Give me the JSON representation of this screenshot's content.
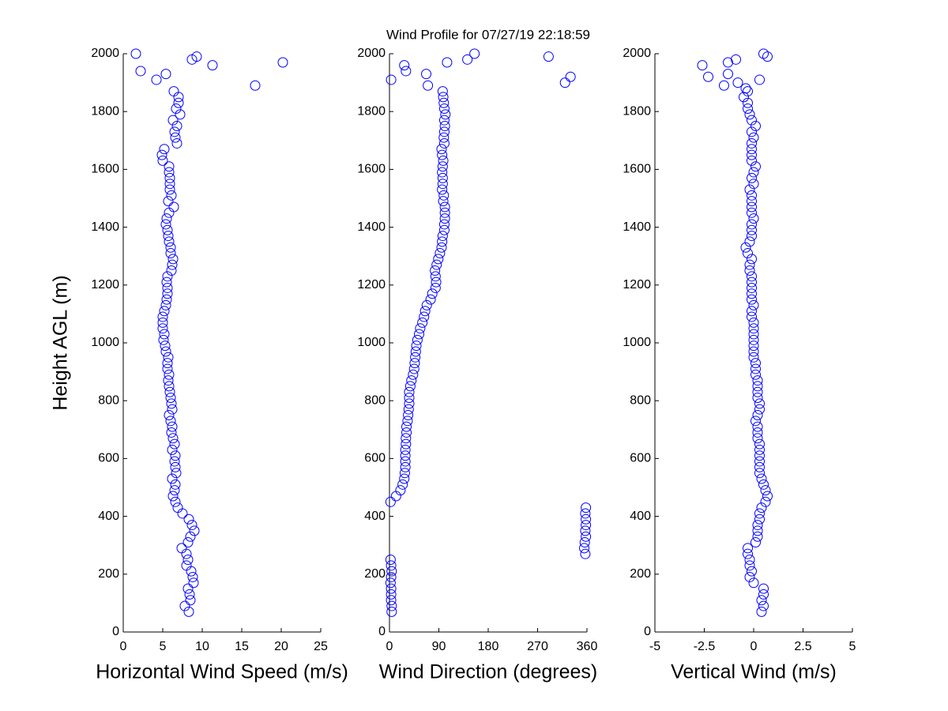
{
  "chart_data": [
    {
      "type": "scatter",
      "title": "Wind Profile for  07/27/19 22:18:59",
      "x_label": "Horizontal Wind Speed (m/s)",
      "y_label": "Height AGL (m)",
      "color": "#0000ff",
      "x": [
        8.3,
        7.8,
        8.5,
        8.4,
        8.2,
        8.9,
        8.8,
        8.6,
        8.0,
        8.2,
        8.0,
        7.4,
        8.2,
        8.5,
        9.0,
        8.7,
        8.3,
        7.5,
        6.9,
        6.6,
        6.3,
        6.5,
        6.6,
        6.2,
        6.7,
        6.6,
        6.5,
        6.6,
        6.2,
        6.5,
        6.3,
        6.1,
        6.2,
        6.0,
        5.8,
        6.2,
        6.1,
        6.0,
        5.9,
        5.8,
        5.7,
        5.8,
        5.6,
        5.6,
        5.7,
        5.4,
        5.3,
        5.1,
        5.2,
        5.0,
        5.0,
        5.0,
        5.2,
        5.4,
        5.5,
        5.6,
        5.6,
        5.5,
        5.6,
        6.1,
        6.2,
        6.3,
        6.0,
        6.0,
        5.8,
        5.7,
        5.6,
        5.4,
        5.5,
        5.8,
        6.4,
        5.7,
        6.1,
        5.9,
        5.9,
        5.9,
        5.8,
        5.8,
        5.0,
        4.9,
        5.2,
        6.8,
        6.6,
        6.5,
        6.8,
        6.3,
        7.2,
        6.7,
        7.0,
        7.0,
        6.4,
        1.6,
        2.2,
        4.2,
        5.4,
        9.3,
        8.7,
        11.3,
        20.2,
        16.7
      ],
      "y": [
        70,
        90,
        110,
        130,
        150,
        170,
        190,
        210,
        230,
        250,
        270,
        290,
        310,
        330,
        350,
        370,
        390,
        410,
        430,
        450,
        470,
        490,
        510,
        530,
        550,
        570,
        590,
        610,
        630,
        650,
        670,
        690,
        710,
        730,
        750,
        770,
        790,
        810,
        830,
        850,
        870,
        890,
        910,
        930,
        950,
        970,
        990,
        1010,
        1030,
        1050,
        1070,
        1090,
        1110,
        1130,
        1150,
        1170,
        1190,
        1210,
        1230,
        1250,
        1270,
        1290,
        1310,
        1330,
        1350,
        1370,
        1390,
        1410,
        1430,
        1450,
        1470,
        1490,
        1510,
        1530,
        1550,
        1570,
        1590,
        1610,
        1630,
        1650,
        1670,
        1690,
        1710,
        1730,
        1750,
        1770,
        1790,
        1810,
        1830,
        1850,
        1870,
        2000,
        1940,
        1910,
        1930,
        1990,
        1980,
        1960,
        1970,
        1890
      ],
      "xlim": [
        0,
        25
      ],
      "xticks": [
        0,
        5,
        10,
        15,
        20,
        25
      ],
      "ylim": [
        0,
        2000
      ],
      "yticks": [
        0,
        200,
        400,
        600,
        800,
        1000,
        1200,
        1400,
        1600,
        1800,
        2000
      ]
    },
    {
      "type": "scatter",
      "x_label": "Wind Direction (degrees)",
      "color": "#0000ff",
      "x": [
        4,
        4,
        3,
        3,
        3,
        2,
        3,
        4,
        3,
        2,
        357,
        355,
        356,
        358,
        357,
        358,
        358,
        357,
        358,
        2,
        12,
        20,
        24,
        27,
        28,
        29,
        29,
        29,
        29,
        30,
        30,
        31,
        31,
        33,
        34,
        35,
        36,
        36,
        36,
        38,
        40,
        43,
        45,
        46,
        47,
        48,
        49,
        51,
        54,
        56,
        60,
        63,
        65,
        68,
        75,
        78,
        84,
        85,
        84,
        83,
        86,
        89,
        92,
        95,
        96,
        97,
        100,
        100,
        101,
        101,
        101,
        98,
        99,
        96,
        97,
        97,
        96,
        97,
        98,
        96,
        95,
        100,
        99,
        100,
        101,
        100,
        102,
        100,
        99,
        98,
        97,
        3,
        27,
        30,
        67,
        70,
        105,
        142,
        155,
        290,
        320,
        330
      ],
      "y": [
        70,
        90,
        110,
        130,
        150,
        170,
        190,
        210,
        230,
        250,
        270,
        290,
        310,
        330,
        350,
        370,
        390,
        410,
        430,
        450,
        470,
        490,
        510,
        530,
        550,
        570,
        590,
        610,
        630,
        650,
        670,
        690,
        710,
        730,
        750,
        770,
        790,
        810,
        830,
        850,
        870,
        890,
        910,
        930,
        950,
        970,
        990,
        1010,
        1030,
        1050,
        1070,
        1090,
        1110,
        1130,
        1150,
        1170,
        1190,
        1210,
        1230,
        1250,
        1270,
        1290,
        1310,
        1330,
        1350,
        1370,
        1390,
        1410,
        1430,
        1450,
        1470,
        1490,
        1510,
        1530,
        1550,
        1570,
        1590,
        1610,
        1630,
        1650,
        1670,
        1690,
        1710,
        1730,
        1750,
        1770,
        1790,
        1810,
        1830,
        1850,
        1870,
        1910,
        1960,
        1940,
        1930,
        1890,
        1970,
        1980,
        2000,
        1990,
        1900,
        1920
      ],
      "xlim": [
        0,
        360
      ],
      "xticks": [
        0,
        90,
        180,
        270,
        360
      ],
      "ylim": [
        0,
        2000
      ],
      "yticks": [
        0,
        200,
        400,
        600,
        800,
        1000,
        1200,
        1400,
        1600,
        1800,
        2000
      ]
    },
    {
      "type": "scatter",
      "x_label": "Vertical Wind (m/s)",
      "color": "#0000ff",
      "x": [
        0.4,
        0.5,
        0.4,
        0.5,
        0.5,
        0.0,
        -0.2,
        -0.1,
        -0.2,
        -0.2,
        -0.3,
        -0.3,
        0.1,
        0.2,
        0.2,
        0.2,
        0.3,
        0.3,
        0.4,
        0.6,
        0.7,
        0.6,
        0.5,
        0.4,
        0.3,
        0.3,
        0.3,
        0.3,
        0.3,
        0.3,
        0.2,
        0.2,
        0.2,
        0.1,
        0.2,
        0.3,
        0.3,
        0.2,
        0.2,
        0.2,
        0.2,
        0.1,
        0.1,
        0.1,
        0.0,
        0.0,
        0.0,
        0.0,
        0.0,
        0.0,
        0.0,
        -0.1,
        -0.1,
        0.0,
        -0.1,
        -0.1,
        -0.1,
        -0.1,
        -0.1,
        -0.2,
        -0.2,
        -0.1,
        -0.3,
        -0.4,
        -0.2,
        -0.1,
        -0.1,
        -0.1,
        0.0,
        -0.1,
        -0.1,
        -0.1,
        -0.1,
        -0.2,
        0.0,
        -0.1,
        0.0,
        0.1,
        -0.1,
        -0.1,
        -0.1,
        -0.1,
        0.0,
        -0.1,
        0.1,
        -0.1,
        -0.2,
        -0.3,
        -0.3,
        -0.5,
        -0.3,
        -2.6,
        -2.3,
        -1.3,
        -1.3,
        -0.9,
        -0.8,
        -1.5,
        0.5,
        0.7,
        0.3,
        -0.4
      ],
      "y": [
        70,
        90,
        110,
        130,
        150,
        170,
        190,
        210,
        230,
        250,
        270,
        290,
        310,
        330,
        350,
        370,
        390,
        410,
        430,
        450,
        470,
        490,
        510,
        530,
        550,
        570,
        590,
        610,
        630,
        650,
        670,
        690,
        710,
        730,
        750,
        770,
        790,
        810,
        830,
        850,
        870,
        890,
        910,
        930,
        950,
        970,
        990,
        1010,
        1030,
        1050,
        1070,
        1090,
        1110,
        1130,
        1150,
        1170,
        1190,
        1210,
        1230,
        1250,
        1270,
        1290,
        1310,
        1330,
        1350,
        1370,
        1390,
        1410,
        1430,
        1450,
        1470,
        1490,
        1510,
        1530,
        1550,
        1570,
        1590,
        1610,
        1630,
        1650,
        1670,
        1690,
        1710,
        1730,
        1750,
        1770,
        1790,
        1810,
        1830,
        1850,
        1870,
        1960,
        1920,
        1970,
        1930,
        1980,
        1900,
        1890,
        2000,
        1990,
        1910,
        1880
      ],
      "xlim": [
        -5,
        5
      ],
      "xticks": [
        -5,
        -2.5,
        0,
        2.5,
        5
      ],
      "ylim": [
        0,
        2000
      ],
      "yticks": [
        0,
        200,
        400,
        600,
        800,
        1000,
        1200,
        1400,
        1600,
        1800,
        2000
      ]
    }
  ]
}
